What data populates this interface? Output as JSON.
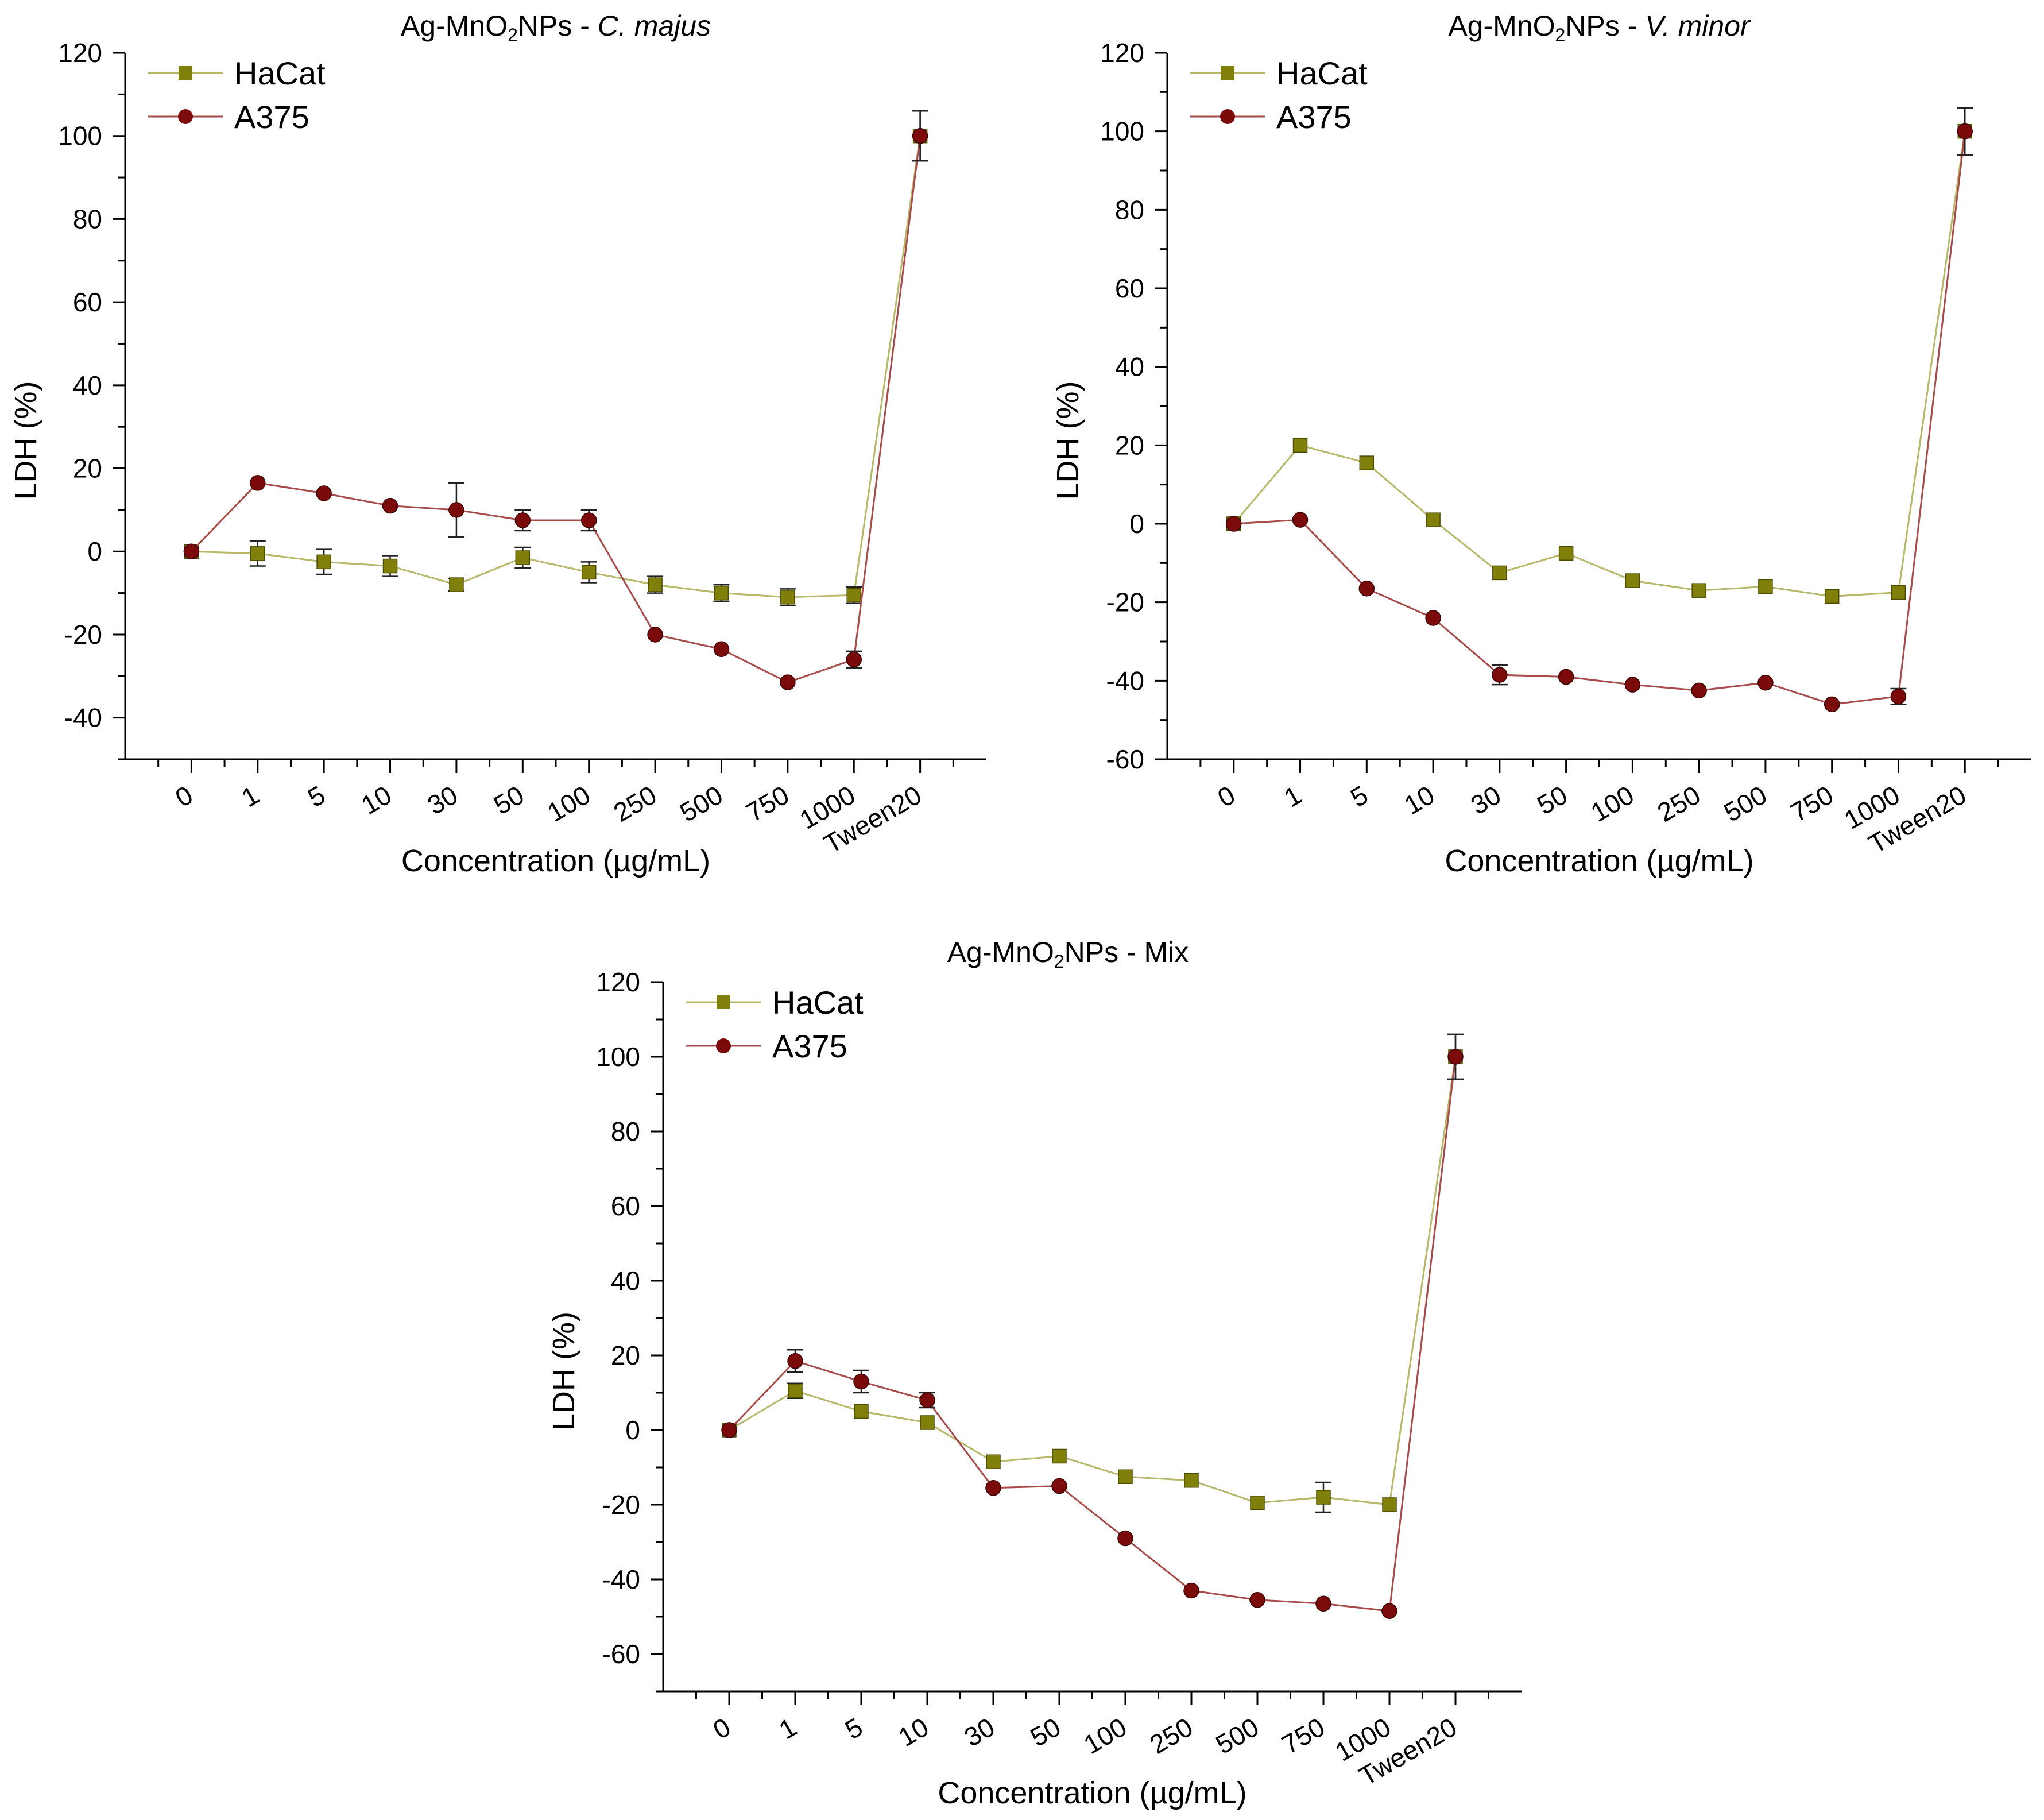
{
  "figure": {
    "background": "#ffffff"
  },
  "colors": {
    "HaCat": "#7f7f0a",
    "HaCat_line": "#b8b86a",
    "A375": "#7b0a0a",
    "A375_line": "#a84a4a"
  },
  "chart_data": [
    {
      "type": "line",
      "title_main": "Ag-MnO",
      "title_sub": "2",
      "title_after": "NPs - ",
      "title_italic": "C. majus",
      "xlabel": "Concentration (µg/mL)",
      "ylabel": "LDH (%)",
      "ylim": [
        -50,
        120
      ],
      "yticks": [
        -40,
        -20,
        0,
        20,
        40,
        60,
        80,
        100,
        120
      ],
      "categories": [
        "0",
        "1",
        "5",
        "10",
        "30",
        "50",
        "100",
        "250",
        "500",
        "750",
        "1000",
        "Tween20"
      ],
      "legend_position": "top-left",
      "series": [
        {
          "name": "HaCat",
          "marker": "square",
          "values": [
            0,
            -0.5,
            -2.5,
            -3.5,
            -8,
            -1.5,
            -5,
            -8,
            -10,
            -11,
            -10.5,
            100
          ],
          "errors": [
            1,
            3,
            3,
            2.5,
            1.5,
            2.5,
            2.5,
            2,
            2,
            2,
            2,
            6
          ]
        },
        {
          "name": "A375",
          "marker": "circle",
          "values": [
            0,
            16.5,
            14,
            11,
            10,
            7.5,
            7.5,
            -20,
            -23.5,
            -31.5,
            -26,
            100
          ],
          "errors": [
            1,
            1,
            1,
            1,
            6.5,
            2.5,
            2.5,
            1,
            1,
            1,
            2,
            6
          ]
        }
      ]
    },
    {
      "type": "line",
      "title_main": "Ag-MnO",
      "title_sub": "2",
      "title_after": "NPs - ",
      "title_italic": "V. minor",
      "xlabel": "Concentration (µg/mL)",
      "ylabel": "LDH (%)",
      "ylim": [
        -60,
        120
      ],
      "yticks": [
        -60,
        -40,
        -20,
        0,
        20,
        40,
        60,
        80,
        100,
        120
      ],
      "categories": [
        "0",
        "1",
        "5",
        "10",
        "30",
        "50",
        "100",
        "250",
        "500",
        "750",
        "1000",
        "Tween20"
      ],
      "legend_position": "top-left",
      "series": [
        {
          "name": "HaCat",
          "marker": "square",
          "values": [
            0,
            20,
            15.5,
            1,
            -12.5,
            -7.5,
            -14.5,
            -17,
            -16,
            -18.5,
            -17.5,
            100
          ],
          "errors": [
            1,
            1,
            1,
            1,
            1,
            1,
            1,
            1,
            1,
            1,
            1,
            6
          ]
        },
        {
          "name": "A375",
          "marker": "circle",
          "values": [
            0,
            1,
            -16.5,
            -24,
            -38.5,
            -39,
            -41,
            -42.5,
            -40.5,
            -46,
            -44,
            100
          ],
          "errors": [
            1,
            1,
            1,
            1,
            2.5,
            1,
            1,
            1,
            1,
            1,
            2,
            6
          ]
        }
      ]
    },
    {
      "type": "line",
      "title_main": "Ag-MnO",
      "title_sub": "2",
      "title_after": "NPs - Mix",
      "title_italic": "",
      "xlabel": "Concentration (µg/mL)",
      "ylabel": "LDH (%)",
      "ylim": [
        -70,
        120
      ],
      "yticks": [
        -60,
        -40,
        -20,
        0,
        20,
        40,
        60,
        80,
        100,
        120
      ],
      "categories": [
        "0",
        "1",
        "5",
        "10",
        "30",
        "50",
        "100",
        "250",
        "500",
        "750",
        "1000",
        "Tween20"
      ],
      "legend_position": "top-left",
      "series": [
        {
          "name": "HaCat",
          "marker": "square",
          "values": [
            0,
            10.5,
            5,
            2,
            -8.5,
            -7,
            -12.5,
            -13.5,
            -19.5,
            -18,
            -20,
            100
          ],
          "errors": [
            1,
            2,
            1,
            1,
            1,
            1,
            1,
            1,
            1,
            4,
            1,
            6
          ]
        },
        {
          "name": "A375",
          "marker": "circle",
          "values": [
            0,
            18.5,
            13,
            8,
            -15.5,
            -15,
            -29,
            -43,
            -45.5,
            -46.5,
            -48.5,
            100
          ],
          "errors": [
            1,
            3,
            3,
            2,
            1,
            1,
            1,
            1,
            1,
            1,
            1,
            6
          ]
        }
      ]
    }
  ]
}
